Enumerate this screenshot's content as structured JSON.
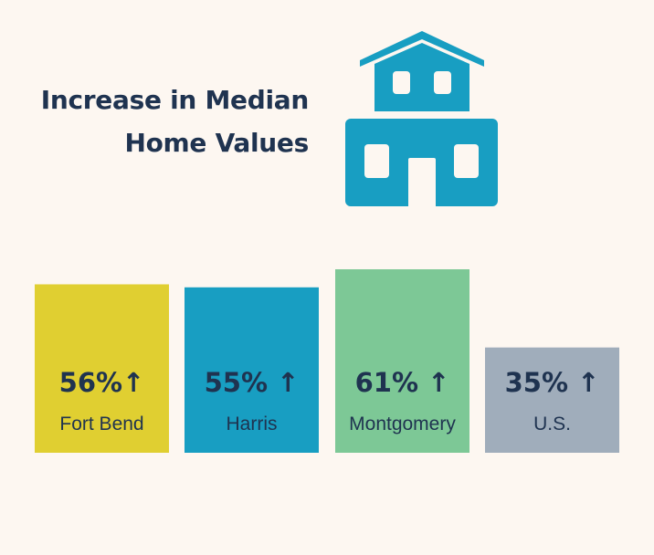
{
  "title_lines": [
    "Increase in Median",
    "Home Values"
  ],
  "colors": {
    "background": "#fdf7f1",
    "text": "#1f3350",
    "icon": "#189ec2"
  },
  "icon": "house-icon",
  "chart_data": {
    "type": "bar",
    "categories": [
      "Fort Bend",
      "Harris",
      "Montgomery",
      "U.S."
    ],
    "values": [
      56,
      55,
      61,
      35
    ],
    "value_labels": [
      "56%↑",
      "55% ↑",
      "61% ↑",
      "35% ↑"
    ],
    "unit": "%",
    "bar_colors": [
      "#e0cf31",
      "#189ec2",
      "#7dc896",
      "#a0adbb"
    ],
    "ylim": [
      0,
      61
    ],
    "grid": false,
    "axes_visible": false
  }
}
